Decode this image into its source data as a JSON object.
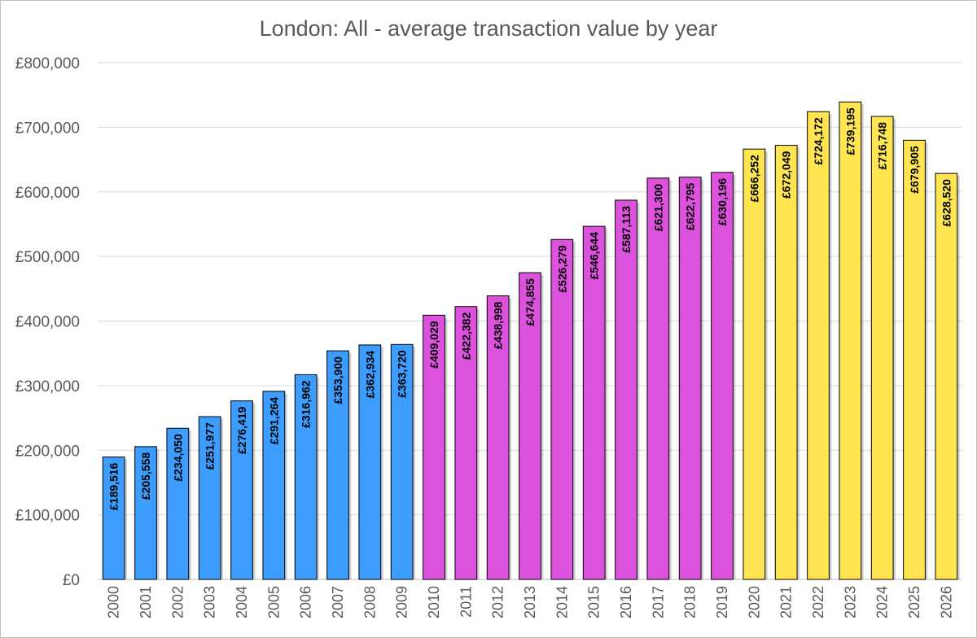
{
  "chart_data": {
    "type": "bar",
    "title": "London: All - average transaction value by year",
    "xlabel": "",
    "ylabel": "",
    "ylim": [
      0,
      800000
    ],
    "yticks": [
      0,
      100000,
      200000,
      300000,
      400000,
      500000,
      600000,
      700000,
      800000
    ],
    "ytick_labels": [
      "£0",
      "£100,000",
      "£200,000",
      "£300,000",
      "£400,000",
      "£500,000",
      "£600,000",
      "£700,000",
      "£800,000"
    ],
    "grid": true,
    "legend": "none",
    "categories": [
      "2000",
      "2001",
      "2002",
      "2003",
      "2004",
      "2005",
      "2006",
      "2007",
      "2008",
      "2009",
      "2010",
      "2011",
      "2012",
      "2013",
      "2014",
      "2015",
      "2016",
      "2017",
      "2018",
      "2019",
      "2020",
      "2021",
      "2022",
      "2023",
      "2024",
      "2025",
      "2026"
    ],
    "values": [
      189516,
      205558,
      234050,
      251977,
      276419,
      291264,
      316962,
      353900,
      362934,
      363720,
      409029,
      422382,
      438998,
      474855,
      526279,
      546644,
      587113,
      621300,
      622795,
      630196,
      666252,
      672049,
      724172,
      739195,
      716748,
      679905,
      628520
    ],
    "value_labels": [
      "£189,516",
      "£205,558",
      "£234,050",
      "£251,977",
      "£276,419",
      "£291,264",
      "£316,962",
      "£353,900",
      "£362,934",
      "£363,720",
      "£409,029",
      "£422,382",
      "£438,998",
      "£474,855",
      "£526,279",
      "£546,644",
      "£587,113",
      "£621,300",
      "£622,795",
      "£630,196",
      "£666,252",
      "£672,049",
      "£724,172",
      "£739,195",
      "£716,748",
      "£679,905",
      "£628,520"
    ],
    "bar_colors": [
      "#3c9dff",
      "#3c9dff",
      "#3c9dff",
      "#3c9dff",
      "#3c9dff",
      "#3c9dff",
      "#3c9dff",
      "#3c9dff",
      "#3c9dff",
      "#3c9dff",
      "#dd52dd",
      "#dd52dd",
      "#dd52dd",
      "#dd52dd",
      "#dd52dd",
      "#dd52dd",
      "#dd52dd",
      "#dd52dd",
      "#dd52dd",
      "#dd52dd",
      "#ffe552",
      "#ffe552",
      "#ffe552",
      "#ffe552",
      "#ffe552",
      "#ffe552",
      "#ffe552"
    ],
    "bar_outline_color": "#000000"
  }
}
